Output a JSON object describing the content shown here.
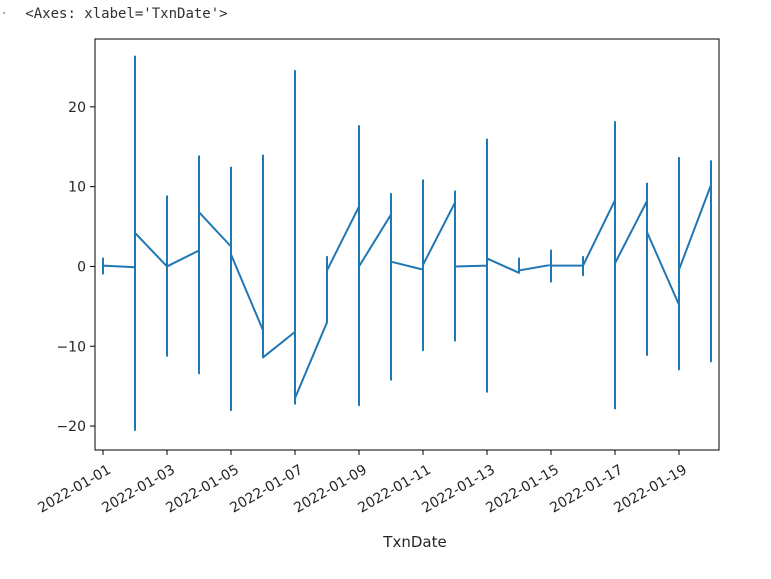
{
  "output": {
    "prompt_marker": "·",
    "repr_text": "<Axes: xlabel='TxnDate'>"
  },
  "chart_data": {
    "type": "line",
    "title": "",
    "xlabel": "TxnDate",
    "ylabel": "",
    "x_axis_kind": "date",
    "xlim": [
      "2021-12-31T18:00",
      "2022-01-20T06:00"
    ],
    "ylim": [
      -23,
      28.5
    ],
    "yticks": [
      -20,
      -10,
      0,
      10,
      20
    ],
    "xticks": [
      "2022-01-01",
      "2022-01-03",
      "2022-01-05",
      "2022-01-07",
      "2022-01-09",
      "2022-01-11",
      "2022-01-13",
      "2022-01-15",
      "2022-01-17",
      "2022-01-19"
    ],
    "grid": false,
    "legend": "none",
    "line_color": "#1f77b4",
    "series": [
      {
        "points": [
          [
            "2022-01-01",
            -1
          ],
          [
            "2022-01-01",
            1
          ],
          [
            "2022-01-01",
            0.3
          ],
          [
            "2022-01-01",
            0.1
          ],
          [
            "2022-01-02",
            -0.1
          ],
          [
            "2022-01-02",
            26.3
          ],
          [
            "2022-01-02",
            -20.5
          ],
          [
            "2022-01-02",
            4.2
          ],
          [
            "2022-01-03",
            0
          ],
          [
            "2022-01-03",
            8.8
          ],
          [
            "2022-01-03",
            -11.2
          ],
          [
            "2022-01-03",
            0
          ],
          [
            "2022-01-04",
            2
          ],
          [
            "2022-01-04",
            13.8
          ],
          [
            "2022-01-04",
            -13.4
          ],
          [
            "2022-01-04",
            13.5
          ],
          [
            "2022-01-04",
            -12.8
          ],
          [
            "2022-01-04",
            6.8
          ],
          [
            "2022-01-05",
            2.5
          ],
          [
            "2022-01-05",
            12.4
          ],
          [
            "2022-01-05",
            -18
          ],
          [
            "2022-01-05",
            1.5
          ],
          [
            "2022-01-06",
            -8
          ],
          [
            "2022-01-06",
            13.9
          ],
          [
            "2022-01-06",
            -11.4
          ],
          [
            "2022-01-07",
            -8.2
          ],
          [
            "2022-01-07",
            24.5
          ],
          [
            "2022-01-07",
            -17.2
          ],
          [
            "2022-01-07",
            24
          ],
          [
            "2022-01-07",
            -16.5
          ],
          [
            "2022-01-08",
            -7
          ],
          [
            "2022-01-08",
            1.2
          ],
          [
            "2022-01-08",
            -0.5
          ],
          [
            "2022-01-09",
            7.5
          ],
          [
            "2022-01-09",
            17.6
          ],
          [
            "2022-01-09",
            -17.4
          ],
          [
            "2022-01-09",
            0
          ],
          [
            "2022-01-10",
            6.5
          ],
          [
            "2022-01-10",
            9.1
          ],
          [
            "2022-01-10",
            -14.2
          ],
          [
            "2022-01-10",
            0.6
          ],
          [
            "2022-01-11",
            -0.4
          ],
          [
            "2022-01-11",
            10.8
          ],
          [
            "2022-01-11",
            -10.5
          ],
          [
            "2022-01-11",
            10.6
          ],
          [
            "2022-01-11",
            -10
          ],
          [
            "2022-01-11",
            0.2
          ],
          [
            "2022-01-12",
            8
          ],
          [
            "2022-01-12",
            9.4
          ],
          [
            "2022-01-12",
            -9.3
          ],
          [
            "2022-01-12",
            0
          ],
          [
            "2022-01-13",
            0.1
          ],
          [
            "2022-01-13",
            15.9
          ],
          [
            "2022-01-13",
            -15.7
          ],
          [
            "2022-01-13",
            1
          ],
          [
            "2022-01-14",
            -0.8
          ],
          [
            "2022-01-14",
            1
          ],
          [
            "2022-01-14",
            -0.5
          ],
          [
            "2022-01-15",
            0.2
          ],
          [
            "2022-01-15",
            2
          ],
          [
            "2022-01-15",
            -1.9
          ],
          [
            "2022-01-15",
            0.1
          ],
          [
            "2022-01-16",
            0.1
          ],
          [
            "2022-01-16",
            1.2
          ],
          [
            "2022-01-16",
            -1.1
          ],
          [
            "2022-01-16",
            0.1
          ],
          [
            "2022-01-17",
            8.3
          ],
          [
            "2022-01-17",
            18.1
          ],
          [
            "2022-01-17",
            -17.8
          ],
          [
            "2022-01-17",
            0.4
          ],
          [
            "2022-01-18",
            8.2
          ],
          [
            "2022-01-18",
            10.4
          ],
          [
            "2022-01-18",
            -11.1
          ],
          [
            "2022-01-18",
            4.3
          ],
          [
            "2022-01-19",
            -4.8
          ],
          [
            "2022-01-19",
            13.6
          ],
          [
            "2022-01-19",
            -12.9
          ],
          [
            "2022-01-19",
            13.3
          ],
          [
            "2022-01-19",
            -12.3
          ],
          [
            "2022-01-19",
            -0.4
          ],
          [
            "2022-01-20",
            10.2
          ],
          [
            "2022-01-20",
            13.2
          ],
          [
            "2022-01-20",
            -11.9
          ],
          [
            "2022-01-20",
            -1
          ]
        ]
      }
    ]
  }
}
